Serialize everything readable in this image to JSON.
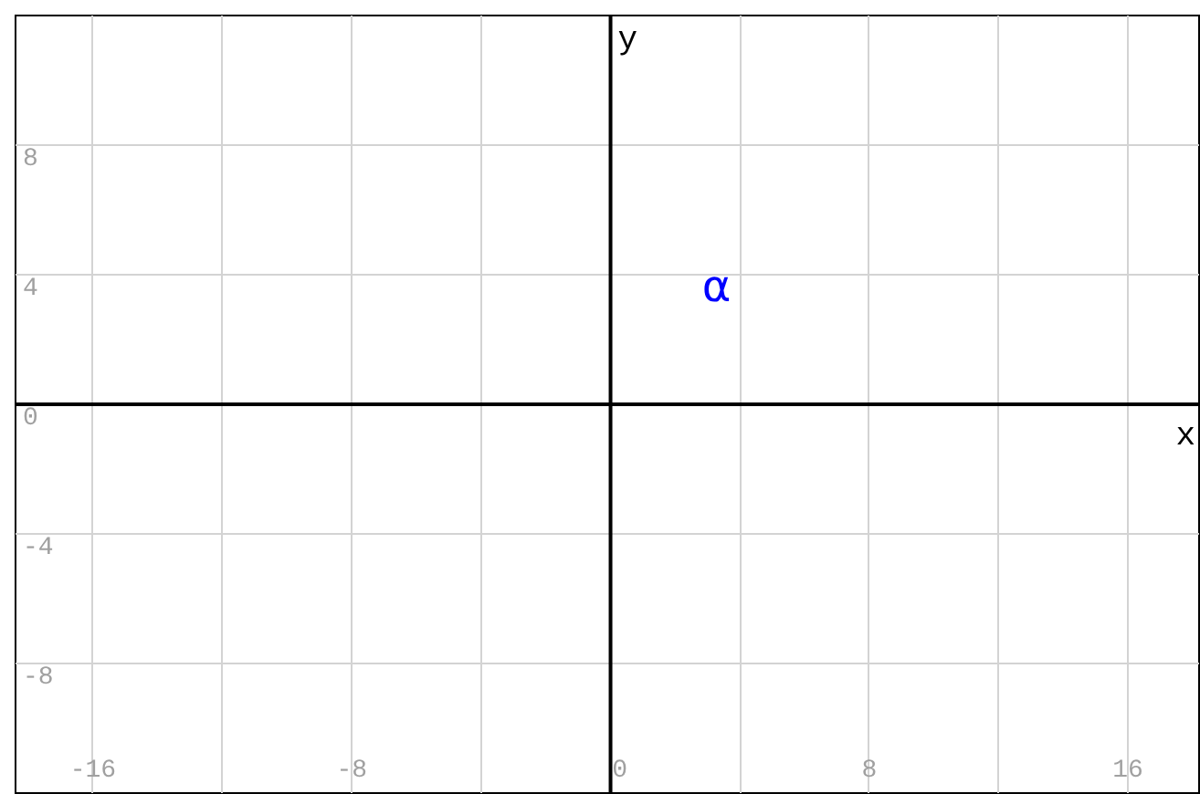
{
  "chart_data": {
    "type": "scatter",
    "xlabel": "x",
    "ylabel": "y",
    "xlim": [
      -18.4,
      18.2
    ],
    "ylim": [
      -12,
      12
    ],
    "xticks": [
      {
        "value": -16,
        "label": "-16"
      },
      {
        "value": -12,
        "label": null
      },
      {
        "value": -8,
        "label": "-8"
      },
      {
        "value": -4,
        "label": null
      },
      {
        "value": 0,
        "label": "0"
      },
      {
        "value": 4,
        "label": null
      },
      {
        "value": 8,
        "label": "8"
      },
      {
        "value": 12,
        "label": null
      },
      {
        "value": 16,
        "label": "16"
      }
    ],
    "yticks": [
      -8,
      -4,
      0,
      4,
      8
    ],
    "grid": true,
    "annotations": [
      "α"
    ]
  }
}
